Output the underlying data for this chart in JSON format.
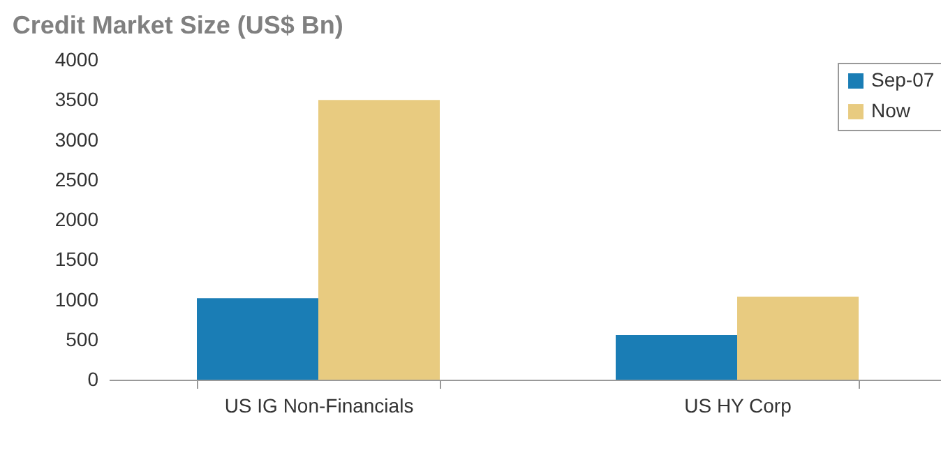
{
  "chart_data": {
    "type": "bar",
    "title": "Credit Market Size (US$ Bn)",
    "categories": [
      "US IG Non-Financials",
      "US HY Corp"
    ],
    "series": [
      {
        "name": "Sep-07",
        "color": "#1a7db5",
        "values": [
          1020,
          560
        ]
      },
      {
        "name": "Now",
        "color": "#e8cb80",
        "values": [
          3500,
          1040
        ]
      }
    ],
    "ylim": [
      0,
      4000
    ],
    "yticks": [
      0,
      500,
      1000,
      1500,
      2000,
      2500,
      3000,
      3500,
      4000
    ],
    "grid": false,
    "legend": "top right"
  }
}
